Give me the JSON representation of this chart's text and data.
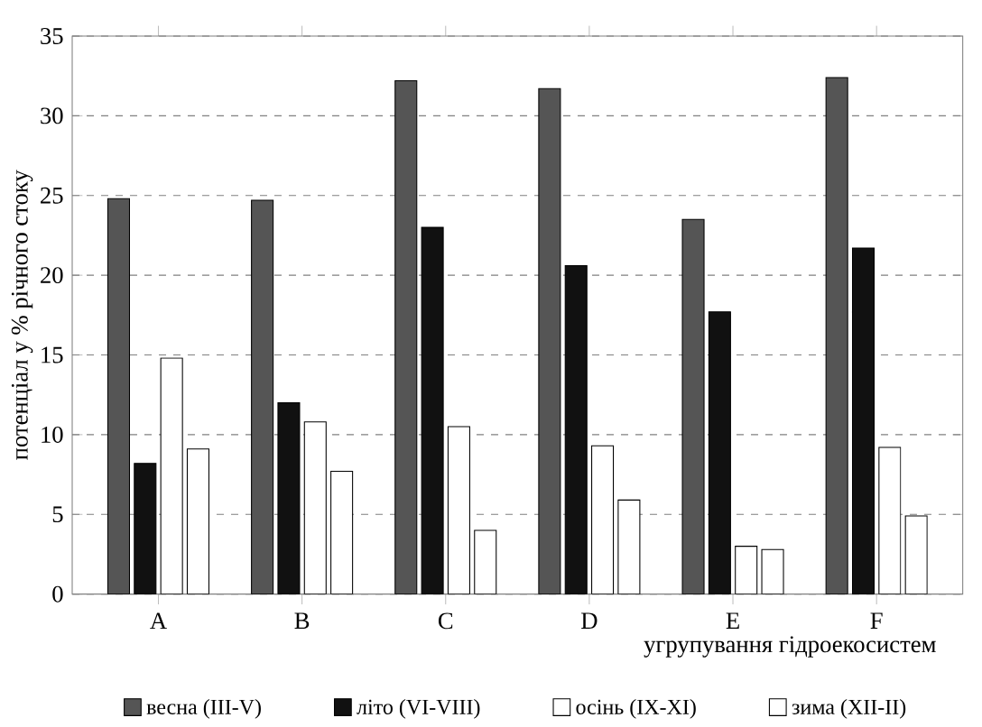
{
  "chart_data": {
    "type": "bar",
    "xlabel": "угрупування гідроекосистем",
    "ylabel": "потенціал у % річного стоку",
    "categories": [
      "A",
      "B",
      "C",
      "D",
      "E",
      "F"
    ],
    "ylim": [
      0,
      35
    ],
    "yticks": [
      0,
      5,
      10,
      15,
      20,
      25,
      30,
      35
    ],
    "grid": "y",
    "legend": "bottom",
    "series": [
      {
        "name": "весна (III-V)",
        "color": "#555555",
        "values": [
          24.8,
          24.7,
          32.2,
          31.7,
          23.5,
          32.4
        ]
      },
      {
        "name": "літо (VI-VIII)",
        "color": "#111111",
        "values": [
          8.2,
          12.0,
          23.0,
          20.6,
          17.7,
          21.7
        ]
      },
      {
        "name": "осінь (IX-XI)",
        "color": "#ffffff",
        "values": [
          14.8,
          10.8,
          10.5,
          9.3,
          3.0,
          9.2
        ]
      },
      {
        "name": "зима (XII-II)",
        "color": "#ffffff",
        "values": [
          9.1,
          7.7,
          4.0,
          5.9,
          2.8,
          4.9
        ]
      }
    ]
  }
}
